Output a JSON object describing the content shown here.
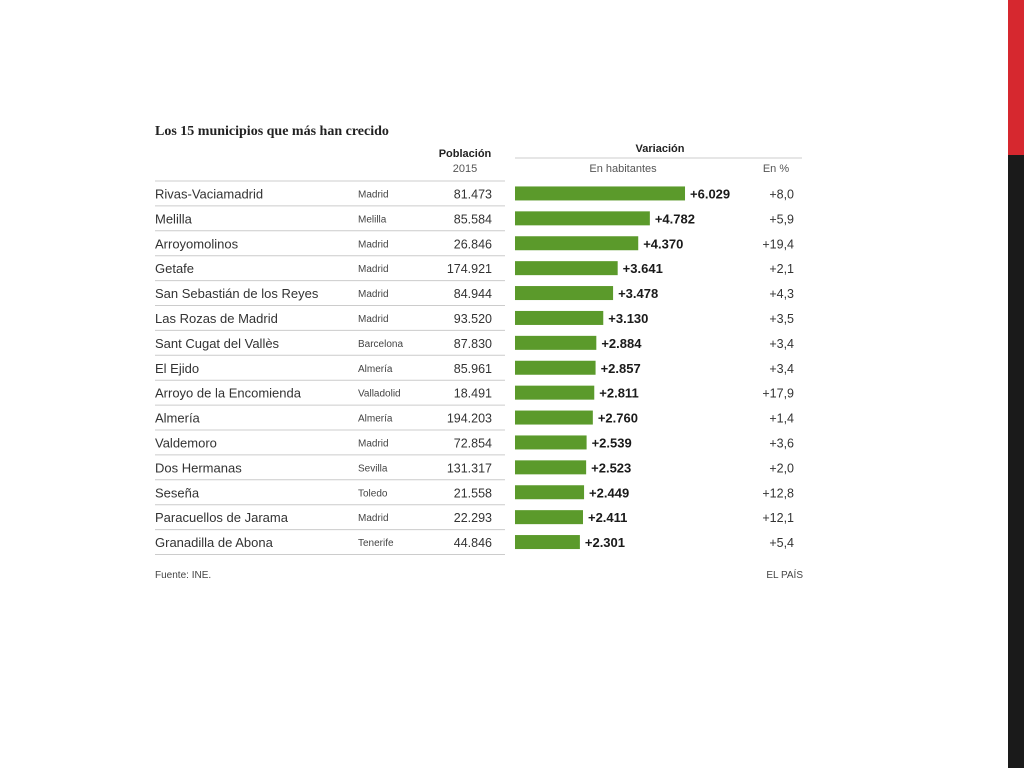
{
  "colors": {
    "bar": "#5b9a2b",
    "accent": "#d6282f",
    "rule": "#cccccc"
  },
  "chart_data": {
    "type": "bar",
    "orientation": "horizontal",
    "title": "Los 15 municipios que más han crecido",
    "headers": {
      "population": "Población",
      "population_year": "2015",
      "variation": "Variación",
      "inhabitants": "En habitantes",
      "percent": "En %"
    },
    "rows": [
      {
        "name": "Rivas-Vaciamadrid",
        "province": "Madrid",
        "population": "81.473",
        "value": 6029,
        "label": "+6.029",
        "percent": "+8,0"
      },
      {
        "name": "Melilla",
        "province": "Melilla",
        "population": "85.584",
        "value": 4782,
        "label": "+4.782",
        "percent": "+5,9"
      },
      {
        "name": "Arroyomolinos",
        "province": "Madrid",
        "population": "26.846",
        "value": 4370,
        "label": "+4.370",
        "percent": "+19,4"
      },
      {
        "name": "Getafe",
        "province": "Madrid",
        "population": "174.921",
        "value": 3641,
        "label": "+3.641",
        "percent": "+2,1"
      },
      {
        "name": "San Sebastián de los Reyes",
        "province": "Madrid",
        "population": "84.944",
        "value": 3478,
        "label": "+3.478",
        "percent": "+4,3"
      },
      {
        "name": "Las Rozas de Madrid",
        "province": "Madrid",
        "population": "93.520",
        "value": 3130,
        "label": "+3.130",
        "percent": "+3,5"
      },
      {
        "name": "Sant Cugat del Vallès",
        "province": "Barcelona",
        "population": "87.830",
        "value": 2884,
        "label": "+2.884",
        "percent": "+3,4"
      },
      {
        "name": "El Ejido",
        "province": "Almería",
        "population": "85.961",
        "value": 2857,
        "label": "+2.857",
        "percent": "+3,4"
      },
      {
        "name": "Arroyo de la Encomienda",
        "province": "Valladolid",
        "population": "18.491",
        "value": 2811,
        "label": "+2.811",
        "percent": "+17,9"
      },
      {
        "name": "Almería",
        "province": "Almería",
        "population": "194.203",
        "value": 2760,
        "label": "+2.760",
        "percent": "+1,4"
      },
      {
        "name": "Valdemoro",
        "province": "Madrid",
        "population": "72.854",
        "value": 2539,
        "label": "+2.539",
        "percent": "+3,6"
      },
      {
        "name": "Dos Hermanas",
        "province": "Sevilla",
        "population": "131.317",
        "value": 2523,
        "label": "+2.523",
        "percent": "+2,0"
      },
      {
        "name": "Seseña",
        "province": "Toledo",
        "population": "21.558",
        "value": 2449,
        "label": "+2.449",
        "percent": "+12,8"
      },
      {
        "name": "Paracuellos de Jarama",
        "province": "Madrid",
        "population": "22.293",
        "value": 2411,
        "label": "+2.411",
        "percent": "+12,1"
      },
      {
        "name": "Granadilla de Abona",
        "province": "Tenerife",
        "population": "44.846",
        "value": 2301,
        "label": "+2.301",
        "percent": "+5,4"
      }
    ],
    "source": "Fuente: INE.",
    "credit": "EL PAÍS"
  }
}
